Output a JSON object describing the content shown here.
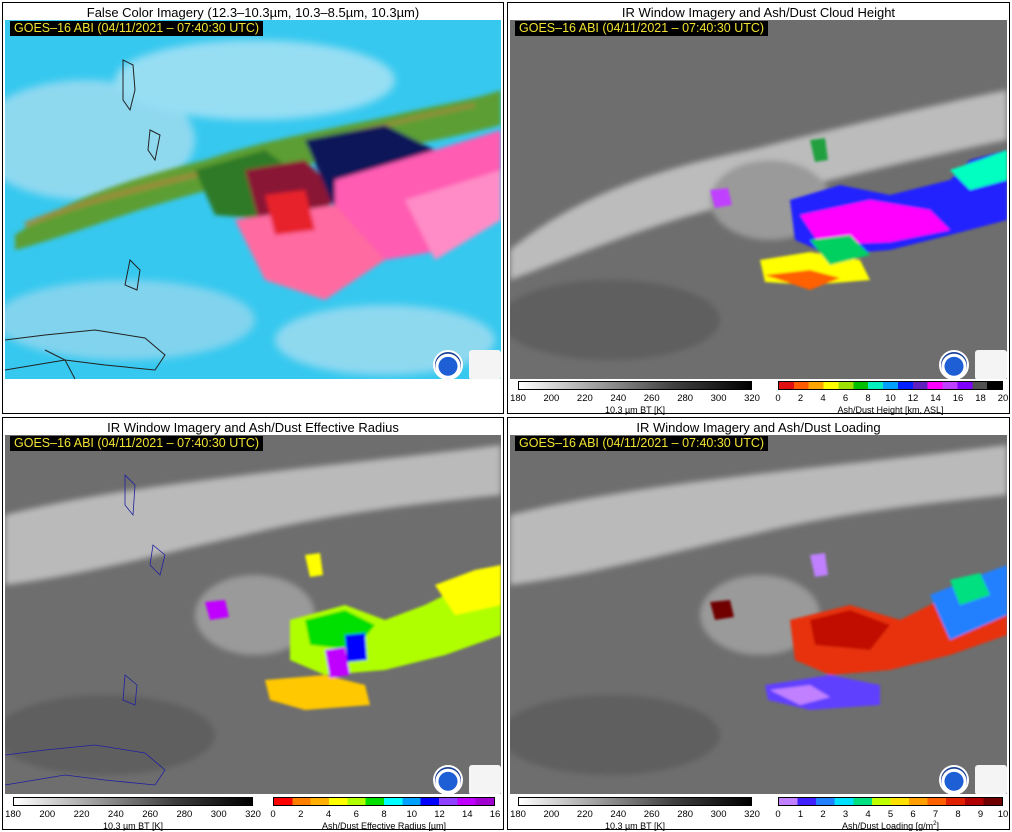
{
  "panels": [
    {
      "title": "False Color Imagery (12.3–10.3µm, 10.3–8.5µm, 10.3µm)",
      "stamp": "GOES–16 ABI (04/11/2021 – 07:40:30 UTC)"
    },
    {
      "title": "IR Window Imagery and Ash/Dust Cloud Height",
      "stamp": "GOES–16 ABI (04/11/2021 – 07:40:30 UTC)"
    },
    {
      "title": "IR Window Imagery and Ash/Dust Effective Radius",
      "stamp": "GOES–16 ABI (04/11/2021 – 07:40:30 UTC)"
    },
    {
      "title": "IR Window Imagery and Ash/Dust Loading",
      "stamp": "GOES–16 ABI (04/11/2021 – 07:40:30 UTC)"
    }
  ],
  "colorbars": {
    "bt": {
      "label": "10.3 µm BT [K]",
      "ticks": [
        "180",
        "200",
        "220",
        "240",
        "260",
        "280",
        "300",
        "320"
      ]
    },
    "height": {
      "label": "Ash/Dust Height [km, ASL]",
      "ticks": [
        "0",
        "2",
        "4",
        "6",
        "8",
        "10",
        "12",
        "14",
        "16",
        "18",
        "20"
      ],
      "colors": [
        "#e01010",
        "#ff5a00",
        "#ffa500",
        "#ffff00",
        "#a0e000",
        "#00c000",
        "#00f0c0",
        "#00a0ff",
        "#0020ff",
        "#6020c0",
        "#ff00ff",
        "#c040ff",
        "#8000ff",
        "#505050",
        "#000000"
      ]
    },
    "radius": {
      "label": "Ash/Dust Effective Radius [µm]",
      "ticks": [
        "0",
        "2",
        "4",
        "6",
        "8",
        "10",
        "12",
        "14",
        "16"
      ],
      "colors": [
        "#ff0000",
        "#ff8000",
        "#ffb000",
        "#ffff00",
        "#b0ff00",
        "#00e000",
        "#00ffff",
        "#00a0ff",
        "#0000ff",
        "#9040ff",
        "#c000ff",
        "#a000d0"
      ]
    },
    "loading": {
      "label": "Ash/Dust Loading [g/m",
      "label_sup": "2",
      "label_end": "]",
      "ticks": [
        "0",
        "1",
        "2",
        "3",
        "4",
        "5",
        "6",
        "7",
        "8",
        "9",
        "10"
      ],
      "colors": [
        "#c080ff",
        "#4020ff",
        "#2080ff",
        "#00e0ff",
        "#00e080",
        "#c0ff00",
        "#ffe000",
        "#ffa000",
        "#ff6000",
        "#e02000",
        "#b00000",
        "#700000"
      ]
    }
  },
  "logos": {
    "noaa": "noaa-logo",
    "cimss": "cimss-logo"
  }
}
